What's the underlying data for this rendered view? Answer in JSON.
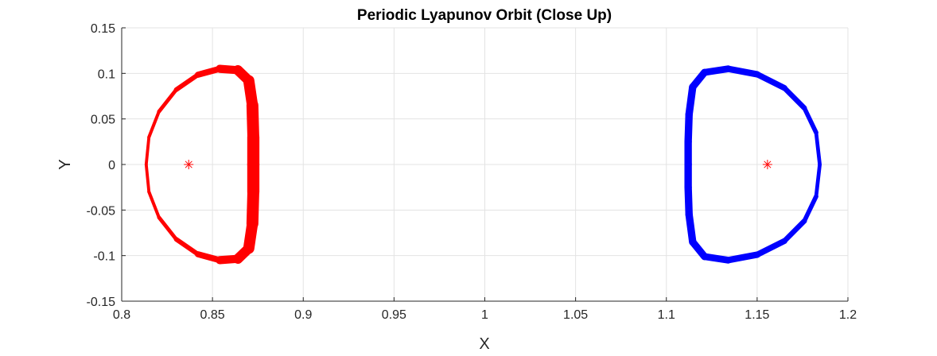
{
  "chart_data": {
    "type": "line",
    "title": "Periodic Lyapunov Orbit (Close Up)",
    "xlabel": "X",
    "ylabel": "Y",
    "xlim": [
      0.8,
      1.2
    ],
    "ylim": [
      -0.15,
      0.15
    ],
    "xticks": [
      0.8,
      0.85,
      0.9,
      0.95,
      1,
      1.05,
      1.1,
      1.15,
      1.2
    ],
    "xtick_labels": [
      "0.8",
      "0.85",
      "0.9",
      "0.95",
      "1",
      "1.05",
      "1.1",
      "1.15",
      "1.2"
    ],
    "yticks": [
      0.15,
      0.1,
      0.05,
      0,
      -0.05,
      -0.1,
      -0.15
    ],
    "ytick_labels": [
      "0.15",
      "0.1",
      "0.05",
      "0",
      "-0.05",
      "-0.1",
      "-0.15"
    ],
    "grid": true,
    "series": [
      {
        "color": "#ff0000",
        "kind": "orbit",
        "points": [
          [
            0.8135,
            0.0
          ],
          [
            0.815,
            0.03
          ],
          [
            0.8205,
            0.058
          ],
          [
            0.83,
            0.082
          ],
          [
            0.842,
            0.0985
          ],
          [
            0.854,
            0.105
          ],
          [
            0.864,
            0.1035
          ],
          [
            0.87,
            0.092
          ],
          [
            0.872,
            0.065
          ],
          [
            0.8725,
            0.03
          ],
          [
            0.8725,
            0.0
          ],
          [
            0.8725,
            -0.03
          ],
          [
            0.872,
            -0.065
          ],
          [
            0.87,
            -0.092
          ],
          [
            0.864,
            -0.1035
          ],
          [
            0.854,
            -0.105
          ],
          [
            0.842,
            -0.0985
          ],
          [
            0.83,
            -0.082
          ],
          [
            0.8205,
            -0.058
          ],
          [
            0.815,
            -0.03
          ]
        ],
        "band_width": [
          0.0008,
          0.0008,
          0.001,
          0.0014,
          0.002,
          0.003,
          0.0042,
          0.005,
          0.0055,
          0.0058,
          0.0058,
          0.0058,
          0.0055,
          0.005,
          0.0042,
          0.003,
          0.002,
          0.0014,
          0.001,
          0.0008
        ]
      },
      {
        "color": "#0000ff",
        "kind": "orbit",
        "points": [
          [
            1.1845,
            0.0
          ],
          [
            1.1825,
            0.035
          ],
          [
            1.176,
            0.062
          ],
          [
            1.165,
            0.084
          ],
          [
            1.15,
            0.099
          ],
          [
            1.134,
            0.105
          ],
          [
            1.121,
            0.101
          ],
          [
            1.1145,
            0.085
          ],
          [
            1.1125,
            0.055
          ],
          [
            1.112,
            0.025
          ],
          [
            1.112,
            0.0
          ],
          [
            1.112,
            -0.025
          ],
          [
            1.1125,
            -0.055
          ],
          [
            1.1145,
            -0.085
          ],
          [
            1.121,
            -0.101
          ],
          [
            1.134,
            -0.105
          ],
          [
            1.15,
            -0.099
          ],
          [
            1.165,
            -0.084
          ],
          [
            1.176,
            -0.062
          ],
          [
            1.1825,
            -0.035
          ]
        ],
        "band_width": [
          0.001,
          0.0014,
          0.0018,
          0.0022,
          0.0026,
          0.0028,
          0.003,
          0.0032,
          0.0032,
          0.0032,
          0.0032,
          0.0032,
          0.0032,
          0.0032,
          0.003,
          0.0028,
          0.0026,
          0.0022,
          0.0018,
          0.0014
        ]
      }
    ],
    "markers": [
      {
        "x": 0.8369,
        "y": 0.0,
        "symbol": "*",
        "color": "#ff0000"
      },
      {
        "x": 1.1557,
        "y": 0.0,
        "symbol": "*",
        "color": "#ff0000"
      }
    ]
  }
}
